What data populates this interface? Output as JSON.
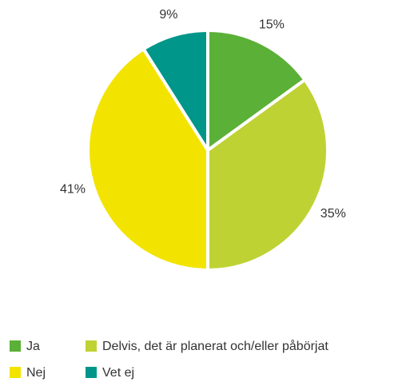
{
  "chart_data": {
    "type": "pie",
    "categories": [
      "Ja",
      "Delvis, det är planerat och/eller påbörjat",
      "Nej",
      "Vet ej"
    ],
    "values": [
      15,
      35,
      41,
      9
    ],
    "value_labels": [
      "15%",
      "35%",
      "41%",
      "9%"
    ],
    "colors": [
      "#5bb038",
      "#bfd234",
      "#f2e400",
      "#00968a"
    ],
    "legend": "bottom"
  }
}
